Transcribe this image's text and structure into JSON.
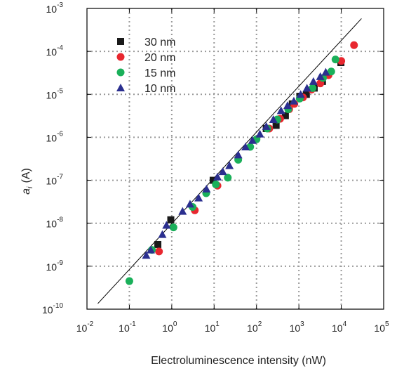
{
  "chart_data": {
    "type": "scatter",
    "x_scale": "log",
    "y_scale": "log",
    "xlim": [
      0.01,
      100000
    ],
    "ylim": [
      1e-10,
      0.001
    ],
    "xlabel": "Electroluminescence intensity (nW)",
    "ylabel": {
      "symbol": "a",
      "subscript": "i",
      "unit": "(A)"
    },
    "x_ticks": [
      {
        "value": 0.01,
        "base": "10",
        "exp": "-2"
      },
      {
        "value": 0.1,
        "base": "10",
        "exp": "-1"
      },
      {
        "value": 1,
        "base": "10",
        "exp": "0"
      },
      {
        "value": 10,
        "base": "10",
        "exp": "1"
      },
      {
        "value": 100,
        "base": "10",
        "exp": "2"
      },
      {
        "value": 1000,
        "base": "10",
        "exp": "3"
      },
      {
        "value": 10000,
        "base": "10",
        "exp": "4"
      },
      {
        "value": 100000,
        "base": "10",
        "exp": "5"
      }
    ],
    "y_ticks": [
      {
        "value": 1e-10,
        "base": "10",
        "exp": "-10"
      },
      {
        "value": 1e-09,
        "base": "10",
        "exp": "-9"
      },
      {
        "value": 1e-08,
        "base": "10",
        "exp": "-8"
      },
      {
        "value": 1e-07,
        "base": "10",
        "exp": "-7"
      },
      {
        "value": 1e-06,
        "base": "10",
        "exp": "-6"
      },
      {
        "value": 1e-05,
        "base": "10",
        "exp": "-5"
      },
      {
        "value": 0.0001,
        "base": "10",
        "exp": "-4"
      },
      {
        "value": 0.001,
        "base": "10",
        "exp": "-3"
      }
    ],
    "grid": true,
    "legend_position": "top-left",
    "fit_line": {
      "x": [
        0.018,
        30000
      ],
      "y": [
        1.35e-10,
        0.00058
      ],
      "color": "#000000"
    },
    "series": [
      {
        "name": "30 nm",
        "marker": "square",
        "color": "#1a1a1a",
        "x": [
          0.47,
          0.95,
          9.5,
          170,
          290,
          480,
          700,
          1050,
          1500,
          2300,
          3600,
          9800
        ],
        "y": [
          3.2e-09,
          1.2e-08,
          1e-07,
          1.6e-06,
          1.9e-06,
          3.2e-06,
          6e-06,
          9e-06,
          1e-05,
          1.4e-05,
          2e-05,
          5.5e-05
        ]
      },
      {
        "name": "20 nm",
        "marker": "circle",
        "color": "#e8272f",
        "x": [
          0.5,
          3.5,
          12,
          200,
          360,
          590,
          780,
          1250,
          2000,
          3200,
          5000,
          10000,
          20000
        ],
        "y": [
          2.2e-09,
          2e-08,
          7.5e-08,
          1.6e-06,
          2.7e-06,
          4.5e-06,
          6e-06,
          8.5e-06,
          1.3e-05,
          1.8e-05,
          2.8e-05,
          6e-05,
          0.00014
        ]
      },
      {
        "name": "15 nm",
        "marker": "circle",
        "color": "#1ab05a",
        "x": [
          0.1,
          0.34,
          1.1,
          3.1,
          6.5,
          11,
          21,
          37,
          71,
          100,
          180,
          310,
          560,
          1050,
          2100,
          3700,
          5800,
          7300
        ],
        "y": [
          4.5e-10,
          2.4e-09,
          8e-09,
          2.4e-08,
          5e-08,
          8e-08,
          1.15e-07,
          3e-07,
          6e-07,
          9e-07,
          1.6e-06,
          2.6e-06,
          4.5e-06,
          8e-06,
          1.4e-05,
          2.4e-05,
          3.4e-05,
          6.5e-05
        ]
      },
      {
        "name": "10 nm",
        "marker": "triangle",
        "color": "#2b2f8f",
        "x": [
          0.25,
          0.32,
          0.6,
          0.75,
          1.8,
          2.7,
          4.3,
          6.6,
          12,
          16,
          23,
          37,
          55,
          80,
          120,
          170,
          250,
          380,
          540,
          760,
          1100,
          1550,
          2200,
          3200,
          4300
        ],
        "y": [
          1.8e-09,
          2.4e-09,
          5.5e-09,
          9e-09,
          1.9e-08,
          2.8e-08,
          3.9e-08,
          6.3e-08,
          1.2e-07,
          1.6e-07,
          2.2e-07,
          3.9e-07,
          6e-07,
          8.5e-07,
          1.2e-06,
          1.8e-06,
          2.6e-06,
          4.2e-06,
          5.5e-06,
          7e-06,
          1e-05,
          1.4e-05,
          2e-05,
          2.6e-05,
          3.3e-05
        ]
      }
    ]
  }
}
